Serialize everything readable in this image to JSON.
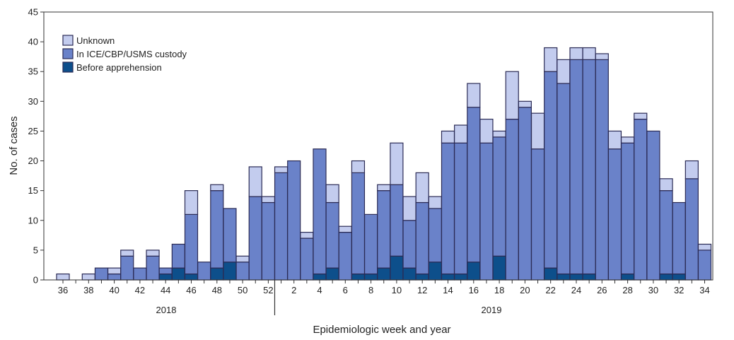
{
  "chart_data": {
    "type": "bar",
    "stacked": true,
    "title": "",
    "xlabel": "Epidemiologic week and year",
    "ylabel": "No. of cases",
    "ylim": [
      0,
      45
    ],
    "y_ticks": [
      0,
      5,
      10,
      15,
      20,
      25,
      30,
      35,
      40,
      45
    ],
    "grid": false,
    "legend_position": "top-left",
    "year_labels": [
      "2018",
      "2019"
    ],
    "categories": [
      "36",
      "37",
      "38",
      "39",
      "40",
      "41",
      "42",
      "43",
      "44",
      "45",
      "46",
      "47",
      "48",
      "49",
      "50",
      "51",
      "52",
      "1",
      "2",
      "3",
      "4",
      "5",
      "6",
      "7",
      "8",
      "9",
      "10",
      "11",
      "12",
      "13",
      "14",
      "15",
      "16",
      "17",
      "18",
      "19",
      "20",
      "21",
      "22",
      "23",
      "24",
      "25",
      "26",
      "27",
      "28",
      "29",
      "30",
      "31",
      "32",
      "33",
      "34"
    ],
    "x_tick_labels": [
      "36",
      "38",
      "40",
      "42",
      "44",
      "46",
      "48",
      "50",
      "52",
      "2",
      "4",
      "6",
      "8",
      "10",
      "12",
      "14",
      "16",
      "18",
      "20",
      "22",
      "24",
      "26",
      "28",
      "30",
      "32",
      "34"
    ],
    "series": [
      {
        "name": "Before apprehension",
        "color": "#0d4f8b",
        "values": [
          0,
          0,
          0,
          0,
          0,
          0,
          0,
          0,
          1,
          2,
          1,
          0,
          2,
          3,
          0,
          0,
          0,
          0,
          0,
          0,
          1,
          2,
          0,
          1,
          1,
          2,
          4,
          2,
          1,
          3,
          1,
          1,
          3,
          0,
          4,
          0,
          0,
          0,
          2,
          1,
          1,
          1,
          0,
          0,
          1,
          0,
          0,
          1,
          1,
          0,
          0
        ]
      },
      {
        "name": "In ICE/CBP/USMS custody",
        "color": "#6a82c9",
        "values": [
          0,
          0,
          0,
          2,
          1,
          4,
          2,
          4,
          1,
          4,
          10,
          3,
          13,
          9,
          3,
          14,
          13,
          18,
          20,
          7,
          21,
          11,
          8,
          17,
          10,
          13,
          12,
          8,
          12,
          9,
          22,
          22,
          26,
          23,
          20,
          27,
          29,
          22,
          33,
          32,
          36,
          36,
          37,
          22,
          22,
          27,
          25,
          14,
          12,
          17,
          5
        ]
      },
      {
        "name": "Unknown",
        "color": "#c3ccee",
        "values": [
          1,
          0,
          1,
          0,
          1,
          1,
          0,
          1,
          0,
          0,
          4,
          0,
          1,
          0,
          1,
          5,
          1,
          1,
          0,
          1,
          0,
          3,
          1,
          2,
          0,
          1,
          7,
          4,
          5,
          2,
          2,
          3,
          4,
          4,
          1,
          8,
          1,
          6,
          4,
          4,
          2,
          2,
          1,
          3,
          1,
          1,
          0,
          2,
          0,
          3,
          1
        ]
      }
    ]
  }
}
